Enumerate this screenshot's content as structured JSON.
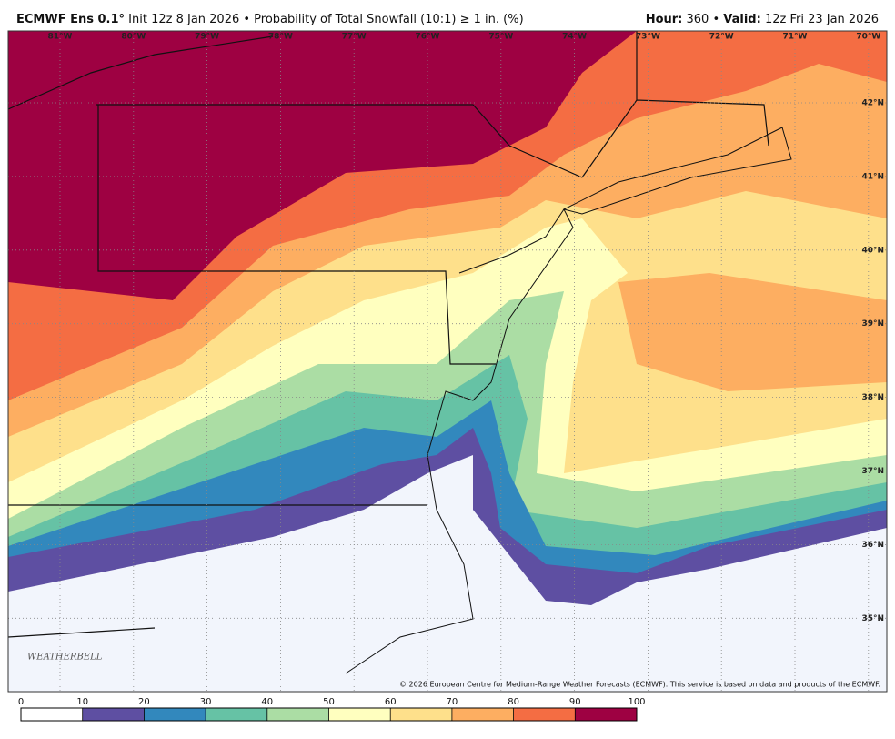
{
  "header": {
    "model": "ECMWF Ens 0.1°",
    "description": " Init 12z 8 Jan 2026 • Probability of Total Snowfall (10:1) ≥ 1 in. (%)",
    "hour_label": "Hour:",
    "hour": " 360 • ",
    "valid_label": "Valid:",
    "valid": " 12z Fri 23 Jan 2026"
  },
  "map": {
    "lon_labels": [
      "81°W",
      "80°W",
      "79°W",
      "78°W",
      "77°W",
      "76°W",
      "75°W",
      "74°W",
      "73°W",
      "72°W",
      "71°W",
      "70°W"
    ],
    "lat_labels": [
      "42°N",
      "41°N",
      "40°N",
      "39°N",
      "38°N",
      "37°N",
      "36°N",
      "35°N"
    ],
    "copyright": "© 2026 European Centre for Medium-Range Weather Forecasts (ECMWF). This service is based on data and products of the ECMWF.",
    "logo": "WEATHERBELL"
  },
  "colorbar": {
    "ticks": [
      0,
      10,
      20,
      30,
      40,
      50,
      60,
      70,
      80,
      90,
      100
    ],
    "colors": [
      "#ffffff",
      "#5e4fa2",
      "#3288bd",
      "#66c2a5",
      "#abdda4",
      "#ffffbf",
      "#fee08b",
      "#fdae61",
      "#f46d43",
      "#9e0142"
    ]
  }
}
